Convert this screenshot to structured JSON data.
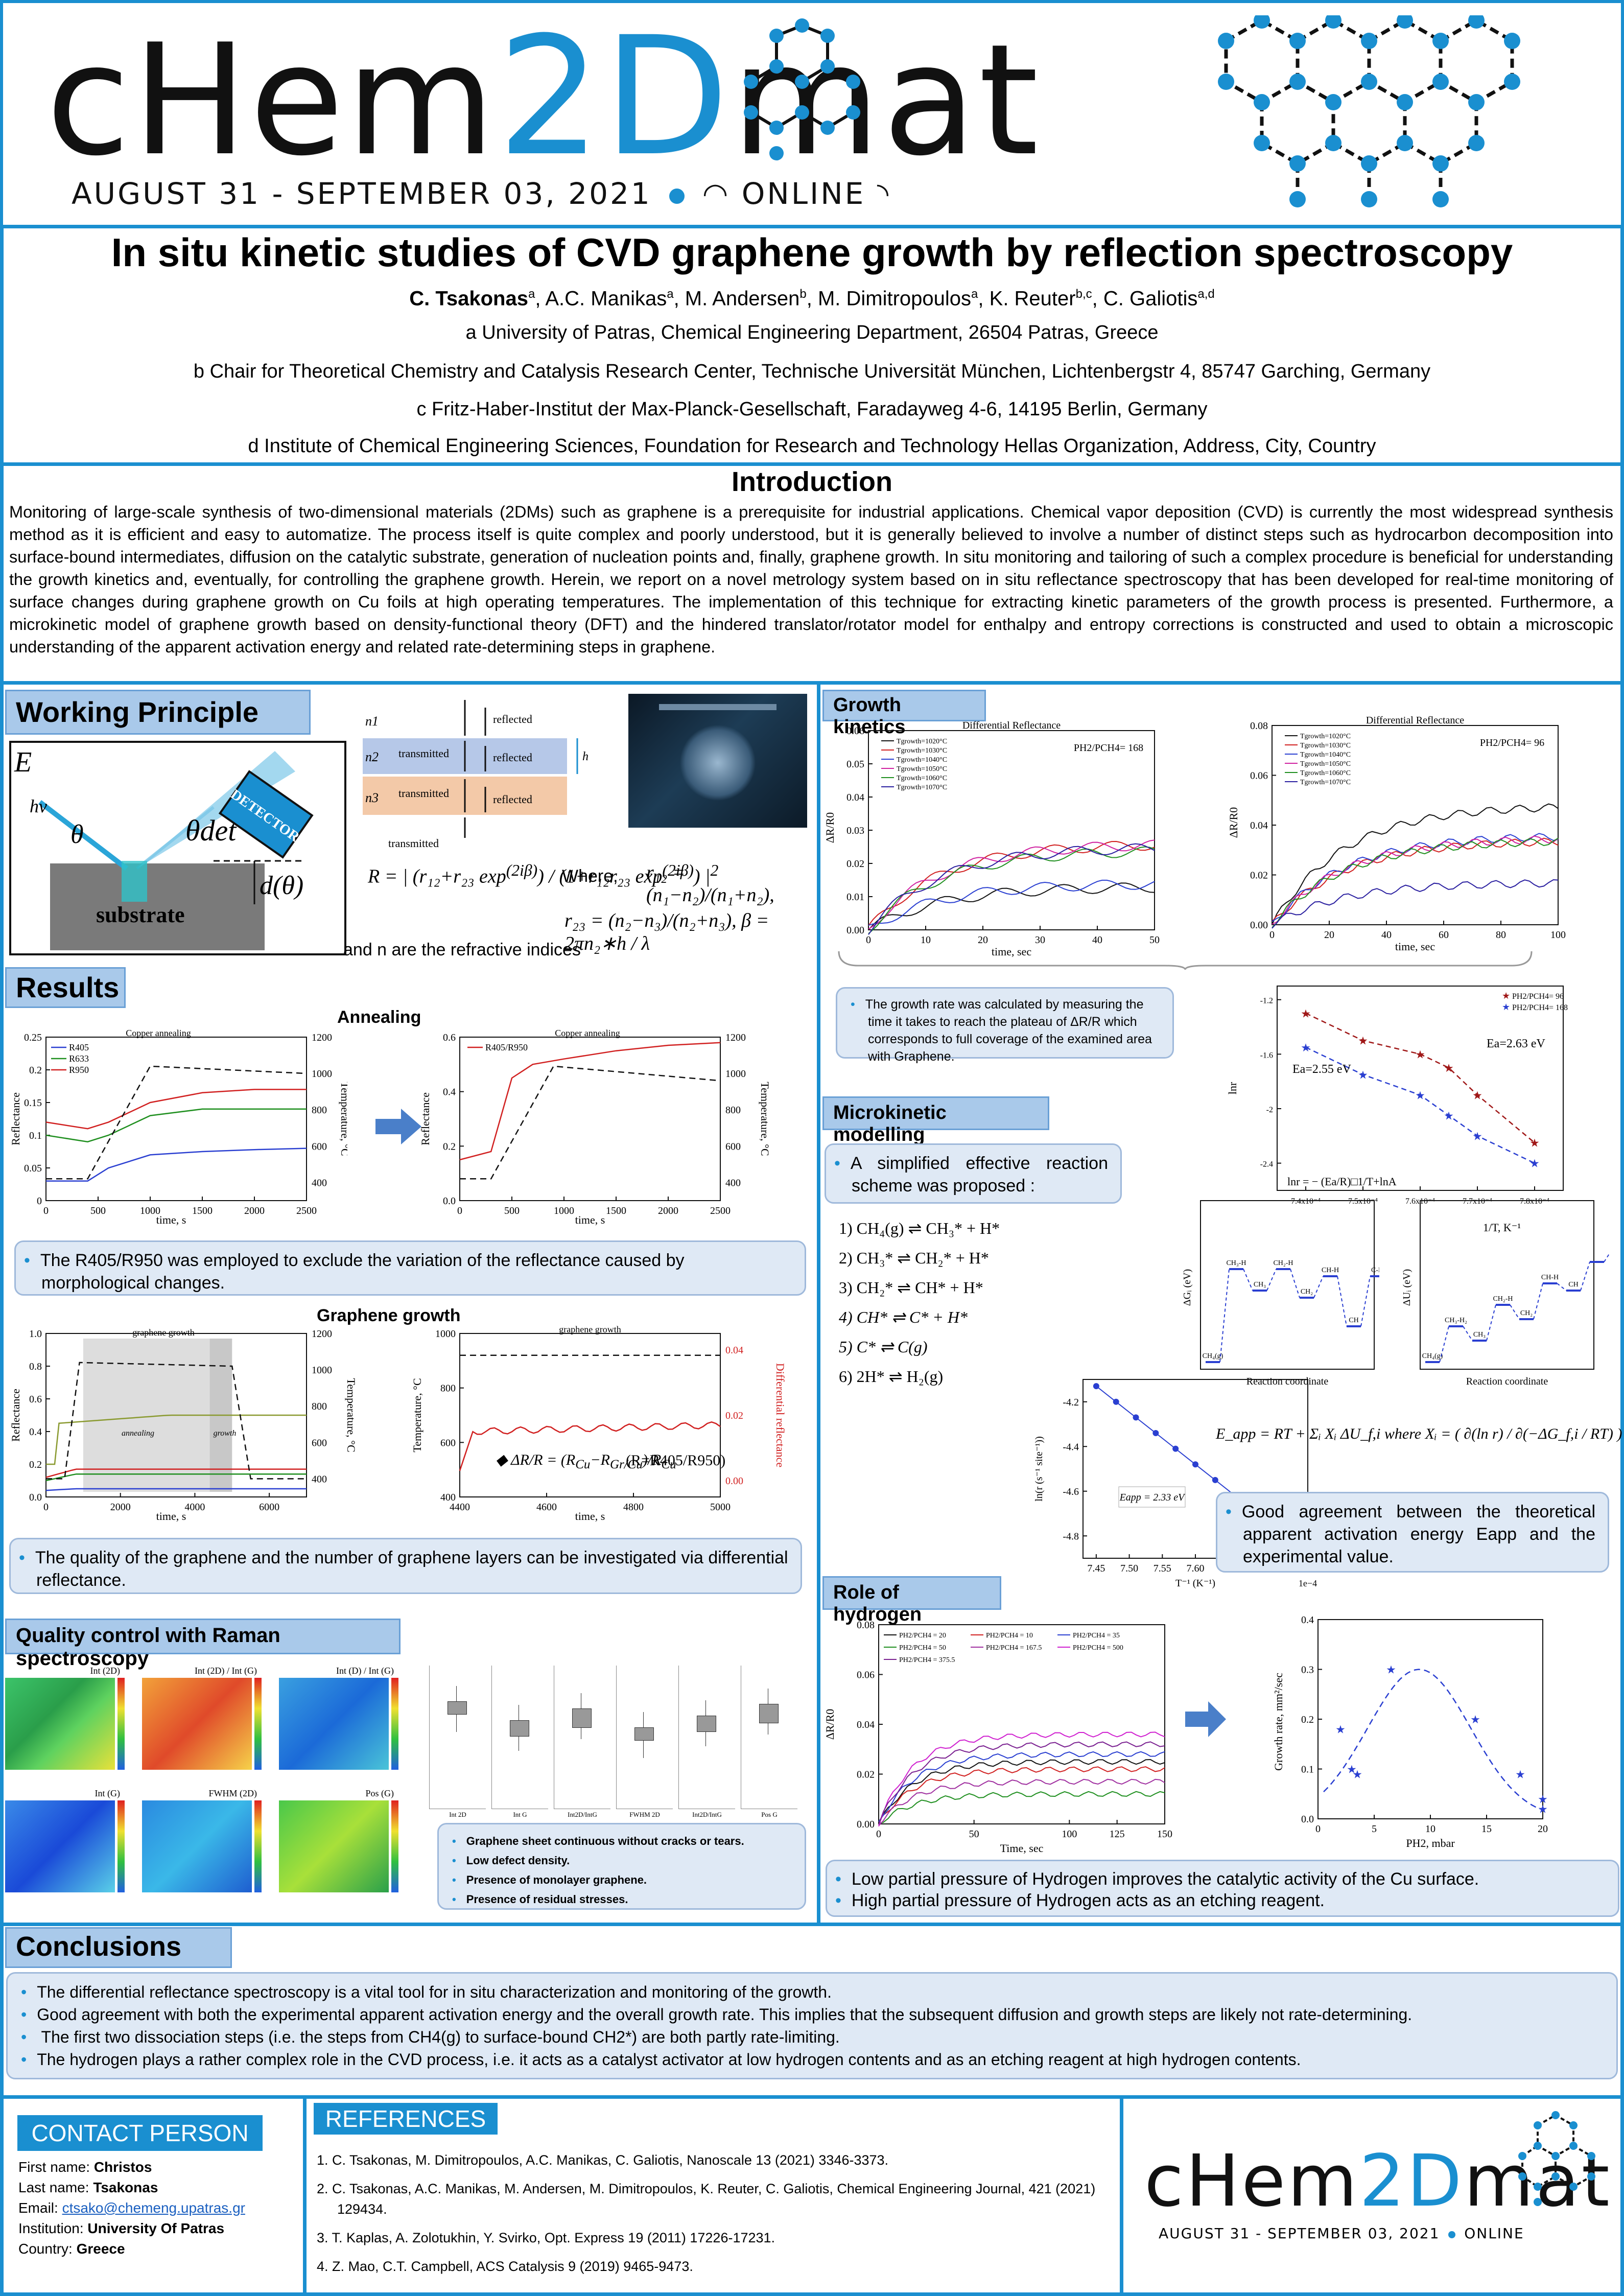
{
  "header": {
    "logo_part1": "cHem",
    "logo_part2": "2D",
    "logo_part3": "mat",
    "date": "AUGUST 31 - SEPTEMBER 03, 2021",
    "online": "ONLINE"
  },
  "title": {
    "main": "In situ kinetic studies of CVD graphene growth by reflection spectroscopy",
    "authors": [
      "C. Tsakonas",
      "A.C. Manikas",
      "M. Andersen",
      "M. Dimitropoulos",
      "K. Reuter",
      "C. Galiotis"
    ],
    "author_sups": [
      "a",
      "a",
      "b",
      "a",
      "b,c",
      "a,d"
    ],
    "affil_a": "a University of Patras, Chemical Engineering Department, 26504 Patras, Greece",
    "affil_b": "b Chair for Theoretical Chemistry and Catalysis Research Center, Technische Universität München, Lichtenbergstr 4, 85747 Garching, Germany",
    "affil_c": "c Fritz-Haber-Institut der Max-Planck-Gesellschaft, Faradayweg 4-6, 14195 Berlin, Germany",
    "affil_d": "d Institute of Chemical Engineering Sciences, Foundation for Research and Technology Hellas Organization, Address, City, Country"
  },
  "intro": {
    "heading": "Introduction",
    "text": "Monitoring of large-scale synthesis of two-dimensional materials (2DMs) such as graphene is a prerequisite for industrial applications. Chemical vapor deposition (CVD) is currently the most widespread synthesis method as it is efficient and easy to automatize. The process itself is quite complex and poorly understood, but it is generally believed to involve a number of distinct steps such as hydrocarbon decomposition into surface-bound intermediates, diffusion on the catalytic substrate, generation of nucleation points and, finally, graphene growth. In situ monitoring and tailoring of such a complex procedure is beneficial for understanding the growth kinetics and, eventually, for controlling the graphene growth. Herein, we report on a novel metrology system based on in situ reflectance spectroscopy that has been developed for real-time monitoring of surface changes during graphene growth on Cu foils at high operating temperatures. The implementation of this technique for extracting kinetic parameters of the growth process is presented. Furthermore, a microkinetic model of graphene growth based on density-functional theory (DFT) and the hindered translator/rotator model for enthalpy and entropy corrections is constructed and used to obtain a microscopic understanding of the apparent activation energy and related rate-determining steps in graphene."
  },
  "working": {
    "heading": "Working Principle",
    "E": "E",
    "hv": "hν",
    "theta": "θ",
    "theta_det": "θdet",
    "detector": "DETECTOR",
    "substrate": "substrate",
    "d_theta": "d(θ)",
    "n1": "n1",
    "n2": "n2",
    "n3": "n3",
    "transmitted": "transmitted",
    "reflected": "reflected",
    "h": "h",
    "where": "Where,",
    "refr_note": "and  n are the refractive indices"
  },
  "results": {
    "heading": "Results",
    "annealing": "Annealing",
    "bubble1": "The R405/R950 was employed to exclude the variation of the reflectance caused by morphological changes.",
    "graphene_growth": "Graphene growth",
    "bubble2": "The quality of the graphene and the number of graphene layers can be investigated via differential reflectance.",
    "ratio_note": "(R=R405/R950)"
  },
  "raman": {
    "heading": "Quality control with Raman spectroscopy",
    "map_titles": [
      "Int (2D)",
      "Int (2D) / Int (G)",
      "Int (D) / Int (G)",
      "Int (G)",
      "FWHM (2D)",
      "Pos (G)"
    ],
    "box_labels": [
      "Int 2D",
      "Int G",
      "Int2D/IntG",
      "FWHM 2D",
      "Int2D/IntG",
      "Pos G"
    ],
    "points": [
      "Graphene sheet continuous without cracks or tears.",
      "Low defect density.",
      "Presence of monolayer graphene.",
      "Presence of residual stresses."
    ]
  },
  "growth": {
    "heading": "Growth kinetics",
    "bubble": "The growth rate was calculated by measuring the time it takes to reach the plateau of ΔR/R which corresponds to full coverage of the examined area with Graphene."
  },
  "micro": {
    "heading": "Microkinetic modelling",
    "bubble": "A simplified effective reaction scheme was proposed :",
    "reactions": [
      "1)  CH₄(g) ⇌ CH₃* + H*",
      "2)  CH₃* ⇌ CH₂* + H*",
      "3)  CH₂* ⇌ CH* + H*",
      "4)  CH* ⇌ C* + H*",
      "5)  C* ⇌ C(g)",
      "6)  2H* ⇌ H₂(g)"
    ],
    "eq": "E_app = RT + Σᵢ Xᵢ ΔU_f,i   where   Xᵢ = ( ∂(ln r) / ∂(−ΔG_f,i / RT) )",
    "bubble2": "Good agreement between the theoretical apparent activation energy Eapp and the experimental value."
  },
  "hydrogen": {
    "heading": "Role of hydrogen",
    "points": [
      "Low partial pressure of Hydrogen improves the catalytic activity of the Cu surface.",
      "High partial pressure of Hydrogen acts as an etching reagent."
    ]
  },
  "conclusions": {
    "heading": "Conclusions",
    "points": [
      "The differential reflectance spectroscopy is a vital tool for in situ characterization and monitoring of the growth.",
      "Good agreement with both the experimental apparent activation energy and the overall growth rate. This implies that the subsequent diffusion and growth steps are likely not rate-determining.",
      " The first two dissociation steps (i.e. the steps from CH4(g) to surface-bound CH2*) are both partly rate-limiting.",
      "The hydrogen plays a rather complex role in the CVD process, i.e. it acts as a catalyst activator at low hydrogen contents and as an etching reagent at high hydrogen contents."
    ]
  },
  "contact": {
    "heading": "CONTACT PERSON",
    "first_label": "First name: ",
    "first": "Christos",
    "last_label": "Last name: ",
    "last": "Tsakonas",
    "email_label": "Email: ",
    "email": "ctsako@chemeng.upatras.gr",
    "inst_label": "Institution: ",
    "inst": "University Of Patras",
    "country_label": "Country: ",
    "country": "Greece"
  },
  "references": {
    "heading": "REFERENCES",
    "items": [
      "1.  C. Tsakonas, M. Dimitropoulos, A.C. Manikas, C. Galiotis, Nanoscale 13 (2021) 3346-3373.",
      "2.  C. Tsakonas, A.C. Manikas, M. Andersen, M. Dimitropoulos, K. Reuter, C. Galiotis, Chemical Engineering Journal, 421 (2021)  129434.",
      "3.   T. Kaplas, A. Zolotukhin, Y. Svirko, Opt. Express 19 (2011) 17226-17231.",
      "4.  Z. Mao, C.T. Campbell, ACS Catalysis 9 (2019) 9465-9473."
    ]
  },
  "colors": {
    "brand": "#1a8fd0",
    "header_box": "#a9c9ea",
    "bubble": "#dfe9f5"
  },
  "chart_data": [
    {
      "type": "line",
      "title": "Copper annealing",
      "xlabel": "time, s",
      "ylabel": "Reflectance",
      "y2label": "Temperature, °C",
      "xlim": [
        0,
        2500
      ],
      "ylim": [
        0,
        0.25
      ],
      "y2lim": [
        300,
        1200
      ],
      "series": [
        {
          "name": "R405",
          "x": [
            0,
            400,
            600,
            1000,
            1500,
            2000,
            2500
          ],
          "values": [
            0.03,
            0.03,
            0.05,
            0.07,
            0.075,
            0.078,
            0.08
          ]
        },
        {
          "name": "R633",
          "x": [
            0,
            400,
            600,
            1000,
            1500,
            2000,
            2500
          ],
          "values": [
            0.1,
            0.09,
            0.1,
            0.13,
            0.14,
            0.14,
            0.14
          ]
        },
        {
          "name": "R950",
          "x": [
            0,
            400,
            600,
            1000,
            1500,
            2000,
            2500
          ],
          "values": [
            0.12,
            0.11,
            0.12,
            0.15,
            0.165,
            0.17,
            0.17
          ]
        }
      ]
    },
    {
      "type": "line",
      "title": "Copper annealing",
      "xlabel": "time, s",
      "ylabel": "Reflectance",
      "y2label": "Temperature, °C",
      "xlim": [
        0,
        2500
      ],
      "ylim": [
        0,
        0.6
      ],
      "y2lim": [
        300,
        1200
      ],
      "series": [
        {
          "name": "R405/R950",
          "x": [
            0,
            300,
            500,
            700,
            1000,
            1500,
            2000,
            2500
          ],
          "values": [
            0.15,
            0.18,
            0.45,
            0.5,
            0.52,
            0.55,
            0.57,
            0.58
          ]
        }
      ]
    },
    {
      "type": "line",
      "title": "graphene growth",
      "xlabel": "time, s",
      "ylabel": "Reflectance",
      "y2label": "Temperature, °C",
      "xlim": [
        0,
        7000
      ],
      "ylim": [
        0,
        1.0
      ],
      "y2lim": [
        300,
        1200
      ]
    },
    {
      "type": "line",
      "title": "graphene growth",
      "xlabel": "time, s",
      "ylabel": "Temperature, °C",
      "y2label": "Differential reflectance",
      "xlim": [
        4400,
        5000
      ],
      "ylim": [
        400,
        1000
      ],
      "y2lim": [
        0,
        0.04
      ]
    },
    {
      "type": "line",
      "title": "Differential Reflectance",
      "note": "PH2/PCH4= 168",
      "xlabel": "time, sec",
      "ylabel": "ΔR/R0",
      "xlim": [
        0,
        50
      ],
      "ylim": [
        0,
        0.06
      ],
      "series": [
        {
          "name": "Tgrowth=1020°C"
        },
        {
          "name": "Tgrowth=1030°C"
        },
        {
          "name": "Tgrowth=1040°C"
        },
        {
          "name": "Tgrowth=1050°C"
        },
        {
          "name": "Tgrowth=1060°C"
        },
        {
          "name": "Tgrowth=1070°C"
        }
      ]
    },
    {
      "type": "line",
      "title": "Differential Reflectance",
      "note": "PH2/PCH4= 96",
      "xlabel": "time, sec",
      "ylabel": "ΔR/R0",
      "xlim": [
        0,
        100
      ],
      "ylim": [
        0,
        0.08
      ],
      "series": [
        {
          "name": "Tgrowth=1020°C"
        },
        {
          "name": "Tgrowth=1030°C"
        },
        {
          "name": "Tgrowth=1040°C"
        },
        {
          "name": "Tgrowth=1050°C"
        },
        {
          "name": "Tgrowth=1060°C"
        },
        {
          "name": "Tgrowth=1070°C"
        }
      ]
    },
    {
      "type": "scatter",
      "xlabel": "1/T, K⁻¹",
      "ylabel": "lnr",
      "annotations": [
        "Ea=2.63 eV",
        "Ea=2.55 eV",
        "lnr = − (Ea/R)□1/T+lnA"
      ],
      "series": [
        {
          "name": "PH2/PCH4= 96",
          "x": [
            0.00074,
            0.00075,
            0.00076,
            0.000765,
            0.00077,
            0.00078
          ],
          "values": [
            -1.3,
            -1.5,
            -1.6,
            -1.7,
            -1.9,
            -2.25
          ]
        },
        {
          "name": "PH2/PCH4= 168",
          "x": [
            0.00074,
            0.00075,
            0.00076,
            0.000765,
            0.00077,
            0.00078
          ],
          "values": [
            -1.55,
            -1.75,
            -1.9,
            -2.05,
            -2.2,
            -2.4
          ]
        }
      ]
    },
    {
      "type": "scatter",
      "xlabel": "T⁻¹ (K⁻¹)",
      "ylabel": "ln(r (s⁻¹ site⁻¹))",
      "annotation": "Eapp = 2.33 eV",
      "x": [
        7.45,
        7.48,
        7.51,
        7.54,
        7.57,
        7.6,
        7.63,
        7.66,
        7.69,
        7.72,
        7.75
      ],
      "values": [
        -4.13,
        -4.2,
        -4.27,
        -4.34,
        -4.41,
        -4.48,
        -4.55,
        -4.62,
        -4.69,
        -4.76,
        -4.83
      ],
      "xlim": [
        7.43,
        7.77
      ],
      "ylim": [
        -4.9,
        -4.1
      ]
    },
    {
      "type": "line",
      "xlabel": "Time, sec",
      "ylabel": "ΔR/R0",
      "xlim": [
        0,
        150
      ],
      "ylim": [
        0,
        0.08
      ],
      "series": [
        {
          "name": "PH2/PCH4 = 20"
        },
        {
          "name": "PH2/PCH4 = 10"
        },
        {
          "name": "PH2/PCH4 = 35"
        },
        {
          "name": "PH2/PCH4 = 50"
        },
        {
          "name": "PH2/PCH4 = 167.5"
        },
        {
          "name": "PH2/PCH4 = 500"
        },
        {
          "name": "PH2/PCH4 = 375.5"
        }
      ]
    },
    {
      "type": "scatter",
      "xlabel": "PH2, mbar",
      "ylabel": "Growth rate, mm²/sec",
      "xlim": [
        0,
        20
      ],
      "ylim": [
        0,
        0.4
      ],
      "x": [
        2,
        3,
        3.5,
        6.5,
        14,
        18,
        20,
        20
      ],
      "values": [
        0.18,
        0.1,
        0.09,
        0.3,
        0.2,
        0.09,
        0.04,
        0.02
      ]
    }
  ]
}
